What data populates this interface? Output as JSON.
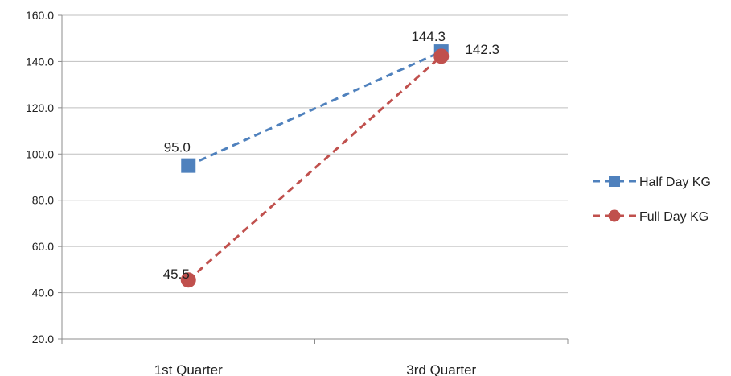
{
  "chart_data": {
    "type": "line",
    "title": "",
    "xlabel": "",
    "ylabel": "",
    "categories": [
      "1st Quarter",
      "3rd Quarter"
    ],
    "ylim": [
      20,
      160
    ],
    "yticks": [
      "20.0",
      "40.0",
      "60.0",
      "80.0",
      "100.0",
      "120.0",
      "140.0",
      "160.0"
    ],
    "grid": "horizontal",
    "legend_position": "right",
    "series": [
      {
        "name": "Half Day KG",
        "values": [
          95.0,
          144.3
        ],
        "labels": [
          "95.0",
          "144.3"
        ],
        "color": "#4f81bd",
        "marker": "square",
        "line_style": "dashed"
      },
      {
        "name": "Full Day KG",
        "values": [
          45.5,
          142.3
        ],
        "labels": [
          "45.5",
          "142.3"
        ],
        "color": "#c0504d",
        "marker": "circle",
        "line_style": "dashed"
      }
    ]
  }
}
